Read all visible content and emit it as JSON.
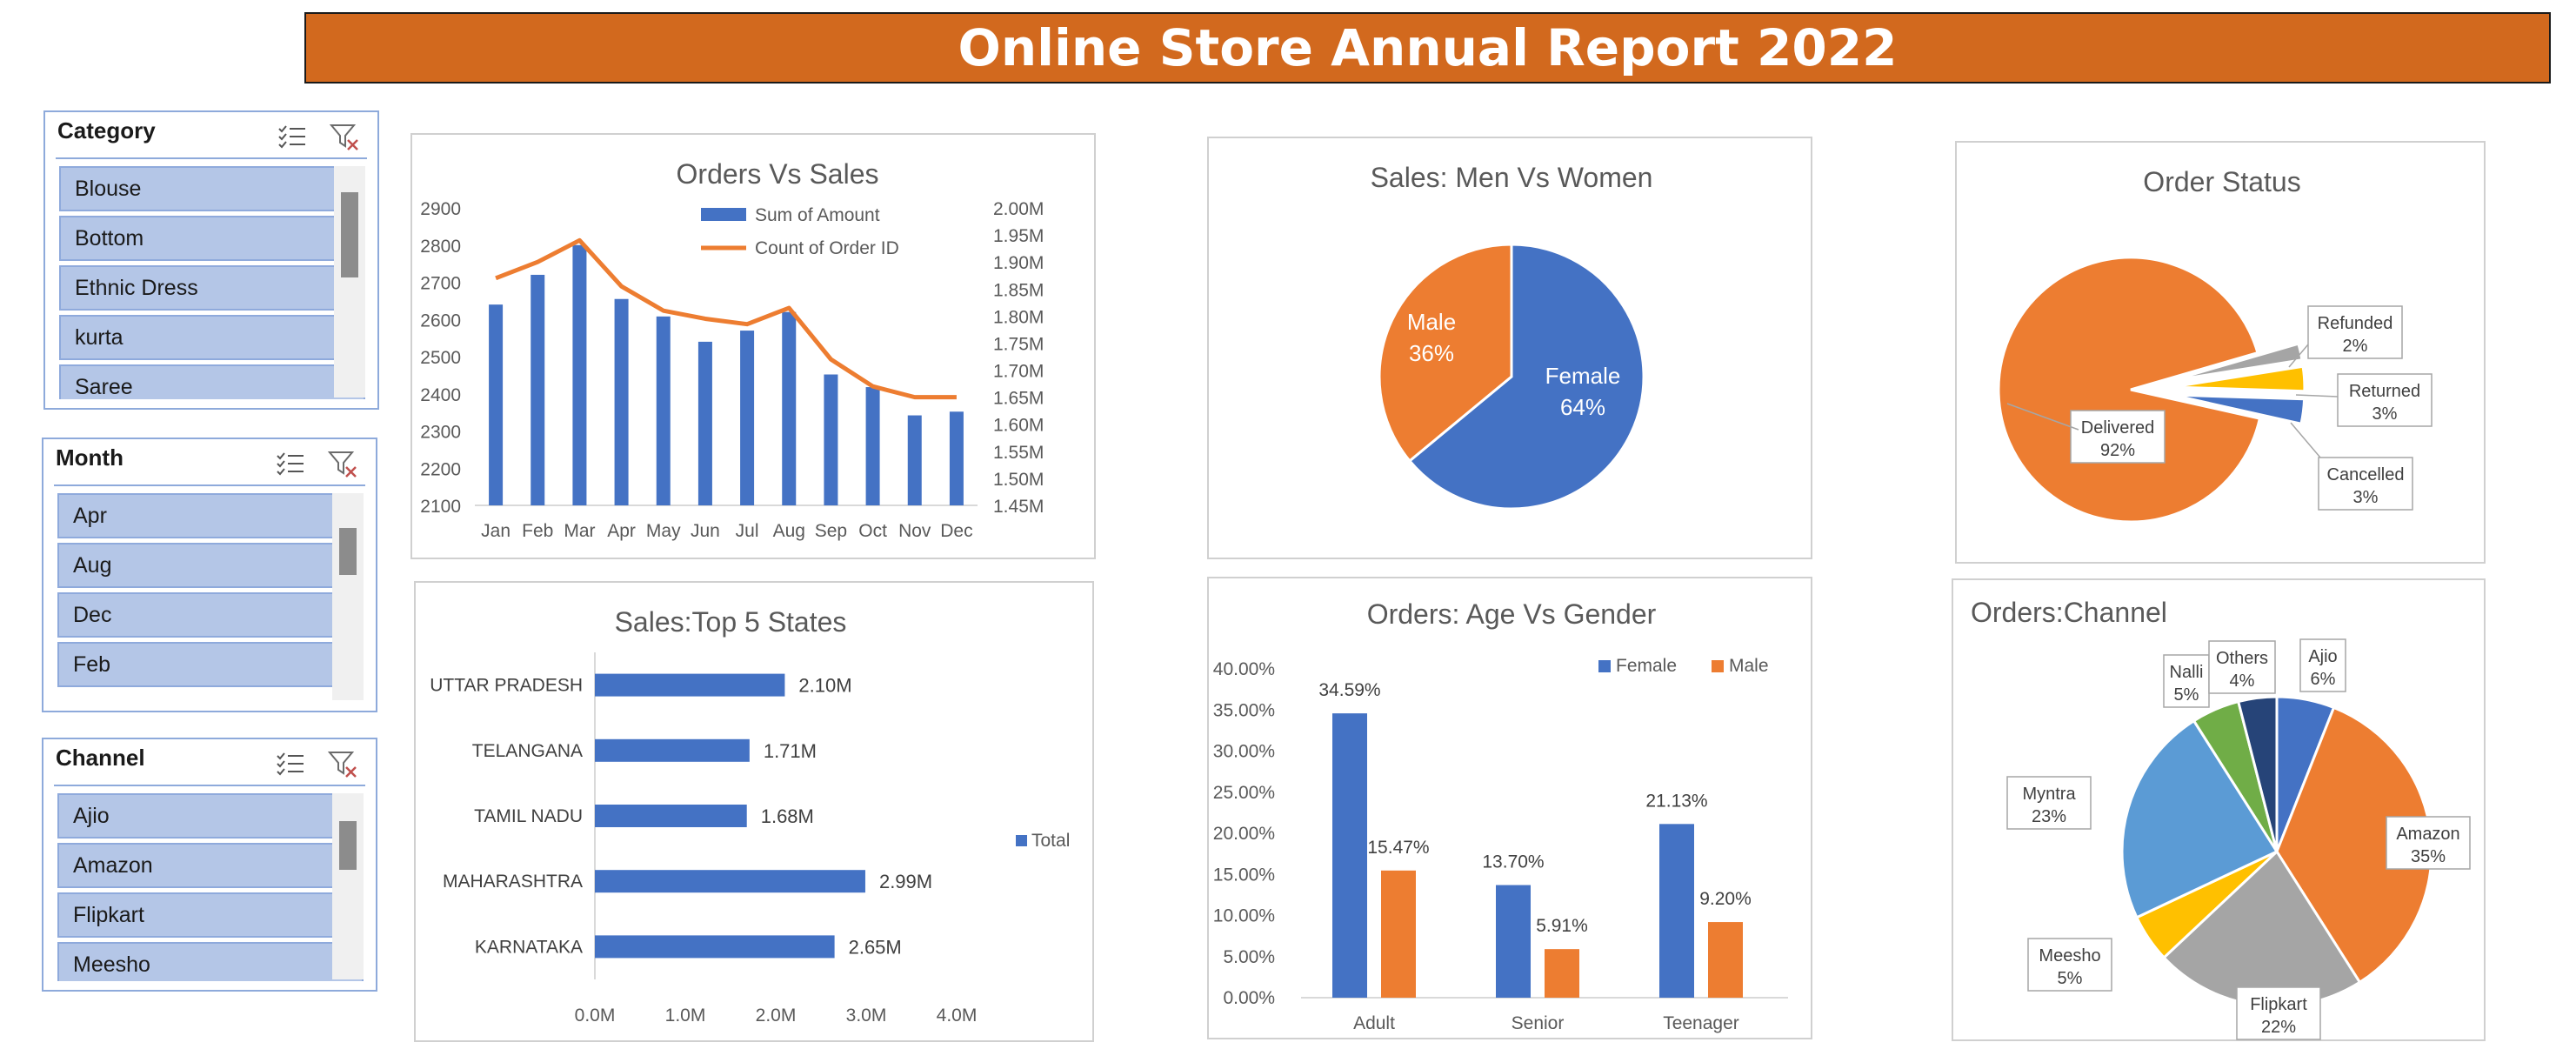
{
  "title": "Online Store Annual Report 2022",
  "colors": {
    "blue": "#4472C4",
    "orange": "#ED7D31",
    "gray": "#A5A5A5",
    "gold": "#FFC000",
    "lightblue": "#5B9BD5",
    "green": "#70AD47",
    "navy": "#264478",
    "banner": "#D2691E"
  },
  "slicers": [
    {
      "header": "Category",
      "items": [
        "Blouse",
        "Bottom",
        "Ethnic Dress",
        "kurta",
        "Saree"
      ]
    },
    {
      "header": "Month",
      "items": [
        "Apr",
        "Aug",
        "Dec",
        "Feb"
      ]
    },
    {
      "header": "Channel",
      "items": [
        "Ajio",
        "Amazon",
        "Flipkart",
        "Meesho"
      ]
    }
  ],
  "chart_data": [
    {
      "id": "orders_vs_sales",
      "type": "bar+line",
      "title": "Orders Vs Sales",
      "categories": [
        "Jan",
        "Feb",
        "Mar",
        "Apr",
        "May",
        "Jun",
        "Jul",
        "Aug",
        "Sep",
        "Oct",
        "Nov",
        "Dec"
      ],
      "series": [
        {
          "name": "Sum of Amount",
          "type": "bar",
          "axis": "left",
          "values": [
            2640,
            2720,
            2800,
            2655,
            2608,
            2540,
            2570,
            2620,
            2452,
            2418,
            2342,
            2352
          ]
        },
        {
          "name": "Count of Order ID",
          "type": "line",
          "axis": "right",
          "values": [
            1.87,
            1.9,
            1.94,
            1.855,
            1.81,
            1.795,
            1.785,
            1.815,
            1.72,
            1.67,
            1.65,
            1.65
          ]
        }
      ],
      "y_left": {
        "min": 2100,
        "max": 2900,
        "ticks": [
          "2100",
          "2200",
          "2300",
          "2400",
          "2500",
          "2600",
          "2700",
          "2800",
          "2900"
        ]
      },
      "y_right": {
        "min": 1.45,
        "max": 2.0,
        "ticks": [
          "1.45M",
          "1.50M",
          "1.55M",
          "1.60M",
          "1.65M",
          "1.70M",
          "1.75M",
          "1.80M",
          "1.85M",
          "1.90M",
          "1.95M",
          "2.00M"
        ]
      },
      "legend": "top-center"
    },
    {
      "id": "men_vs_women",
      "type": "pie",
      "title": "Sales: Men Vs Women",
      "slices": [
        {
          "name": "Female",
          "value": 64,
          "label": "64%"
        },
        {
          "name": "Male",
          "value": 36,
          "label": "36%"
        }
      ]
    },
    {
      "id": "order_status",
      "type": "pie",
      "title": "Order Status",
      "slices": [
        {
          "name": "Delivered",
          "value": 92,
          "label": "92%"
        },
        {
          "name": "Refunded",
          "value": 2,
          "label": "2%"
        },
        {
          "name": "Returned",
          "value": 3,
          "label": "3%"
        },
        {
          "name": "Cancelled",
          "value": 3,
          "label": "3%"
        }
      ]
    },
    {
      "id": "top5_states",
      "type": "bar",
      "orientation": "horizontal",
      "title": "Sales:Top 5 States",
      "categories": [
        "UTTAR PRADESH",
        "TELANGANA",
        "TAMIL NADU",
        "MAHARASHTRA",
        "KARNATAKA"
      ],
      "series": [
        {
          "name": "Total",
          "values": [
            2.1,
            1.71,
            1.68,
            2.99,
            2.65
          ],
          "labels": [
            "2.10M",
            "1.71M",
            "1.68M",
            "2.99M",
            "2.65M"
          ]
        }
      ],
      "x_ticks": [
        "0.0M",
        "1.0M",
        "2.0M",
        "3.0M",
        "4.0M"
      ],
      "xlim": [
        0,
        4
      ],
      "legend": "right"
    },
    {
      "id": "age_vs_gender",
      "type": "bar",
      "title": "Orders: Age Vs Gender",
      "categories": [
        "Adult",
        "Senior",
        "Teenager"
      ],
      "series": [
        {
          "name": "Female",
          "values": [
            34.59,
            13.7,
            21.13
          ],
          "labels": [
            "34.59%",
            "13.70%",
            "21.13%"
          ]
        },
        {
          "name": "Male",
          "values": [
            15.47,
            5.91,
            9.2
          ],
          "labels": [
            "15.47%",
            "5.91%",
            "9.20%"
          ]
        }
      ],
      "y_ticks": [
        "0.00%",
        "5.00%",
        "10.00%",
        "15.00%",
        "20.00%",
        "25.00%",
        "30.00%",
        "35.00%",
        "40.00%"
      ],
      "ylim": [
        0,
        40
      ],
      "legend": "top-right"
    },
    {
      "id": "orders_channel",
      "type": "pie",
      "title": "Orders:Channel",
      "slices": [
        {
          "name": "Ajio",
          "value": 6,
          "label": "6%"
        },
        {
          "name": "Amazon",
          "value": 35,
          "label": "35%"
        },
        {
          "name": "Flipkart",
          "value": 22,
          "label": "22%"
        },
        {
          "name": "Meesho",
          "value": 5,
          "label": "5%"
        },
        {
          "name": "Myntra",
          "value": 23,
          "label": "23%"
        },
        {
          "name": "Nalli",
          "value": 5,
          "label": "5%"
        },
        {
          "name": "Others",
          "value": 4,
          "label": "4%"
        }
      ]
    }
  ]
}
